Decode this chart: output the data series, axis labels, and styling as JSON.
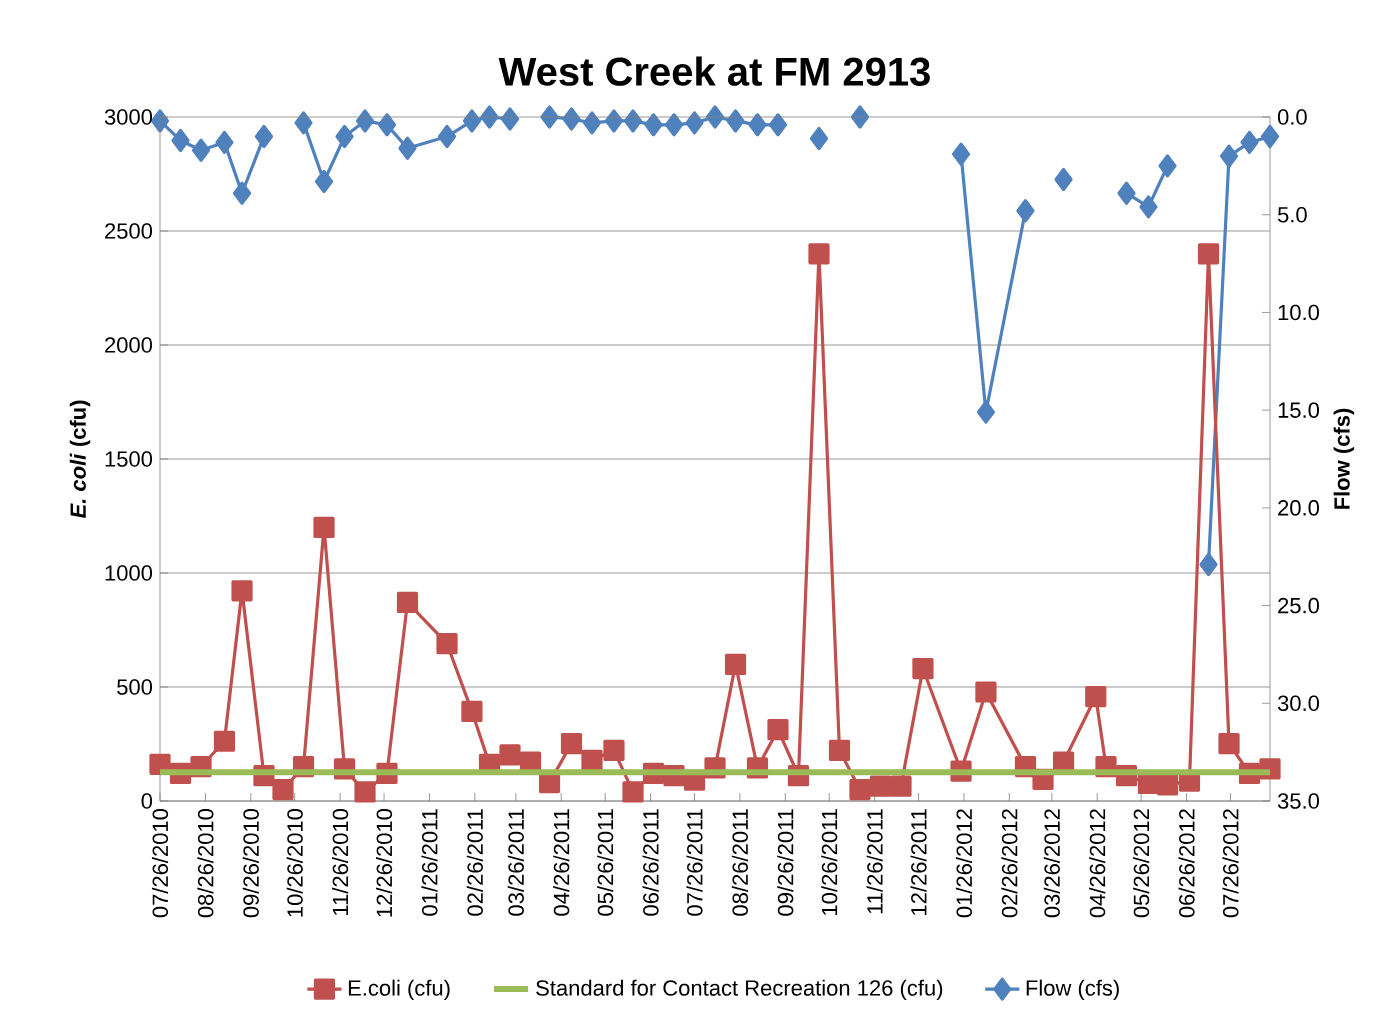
{
  "chart_data": {
    "type": "line",
    "title": "West Creek at FM 2913",
    "ylabel": "*E. coli* (cfu)",
    "y2label": "Flow (cfs)",
    "x": [
      "2010-07-26",
      "2010-08-09",
      "2010-08-23",
      "2010-09-08",
      "2010-09-20",
      "2010-10-05",
      "2010-10-18",
      "2010-11-01",
      "2010-11-15",
      "2010-11-29",
      "2010-12-13",
      "2010-12-28",
      "2011-01-11",
      "2011-02-07",
      "2011-02-24",
      "2011-03-08",
      "2011-03-22",
      "2011-04-05",
      "2011-04-18",
      "2011-05-03",
      "2011-05-17",
      "2011-06-01",
      "2011-06-14",
      "2011-06-28",
      "2011-07-12",
      "2011-07-26",
      "2011-08-09",
      "2011-08-23",
      "2011-09-07",
      "2011-09-21",
      "2011-10-05",
      "2011-10-19",
      "2011-11-02",
      "2011-11-16",
      "2011-11-30",
      "2011-12-14",
      "2011-12-29",
      "2012-01-24",
      "2012-02-10",
      "2012-03-08",
      "2012-03-20",
      "2012-04-03",
      "2012-04-25",
      "2012-05-02",
      "2012-05-16",
      "2012-05-31",
      "2012-06-13",
      "2012-06-28",
      "2012-07-11",
      "2012-07-25",
      "2012-08-08",
      "2012-08-22"
    ],
    "series": [
      {
        "name": "E.coli (cfu)",
        "color": "#c0504d",
        "marker": "square",
        "values": [
          161,
          121,
          151,
          262,
          922,
          111,
          50,
          151,
          1200,
          141,
          40,
          121,
          871,
          690,
          393,
          161,
          202,
          171,
          81,
          252,
          178,
          222,
          40,
          121,
          111,
          91,
          145,
          599,
          145,
          313,
          111,
          2400,
          222,
          50,
          65,
          65,
          581,
          131,
          478,
          151,
          95,
          171,
          458,
          151,
          111,
          77,
          71,
          87,
          2400,
          252,
          121,
          141
        ]
      },
      {
        "name": "Standard for Contact Recreation 126 (cfu)",
        "color": "#9bbb59",
        "marker": "none",
        "x": [
          "2010-07-26",
          "2012-08-22"
        ],
        "values": [
          126,
          126
        ]
      },
      {
        "name": "Flow (cfs)",
        "color": "#4f81bd",
        "marker": "diamond",
        "axis": "y2",
        "values": [
          0.2,
          1.2,
          1.7,
          1.3,
          3.9,
          1.0,
          null,
          0.3,
          3.3,
          1.0,
          0.2,
          0.4,
          1.6,
          1.0,
          0.2,
          0.0,
          0.1,
          null,
          0.0,
          0.1,
          0.3,
          0.2,
          0.2,
          0.4,
          0.4,
          0.3,
          0.0,
          0.2,
          0.4,
          0.4,
          null,
          1.1,
          null,
          0.0,
          null,
          null,
          null,
          1.9,
          15.1,
          4.8,
          null,
          3.2,
          null,
          null,
          3.9,
          4.6,
          2.5,
          null,
          22.9,
          2.0,
          1.3,
          1.0
        ]
      }
    ],
    "xlim": [
      "2010-07-26",
      "2012-08-22"
    ],
    "xticks": [
      {
        "value": "2010-07-26",
        "label": "07/26/2010"
      },
      {
        "value": "2010-08-26",
        "label": "08/26/2010"
      },
      {
        "value": "2010-09-26",
        "label": "09/26/2010"
      },
      {
        "value": "2010-10-26",
        "label": "10/26/2010"
      },
      {
        "value": "2010-11-26",
        "label": "11/26/2010"
      },
      {
        "value": "2010-12-26",
        "label": "12/26/2010"
      },
      {
        "value": "2011-01-26",
        "label": "01/26/2011"
      },
      {
        "value": "2011-02-26",
        "label": "02/26/2011"
      },
      {
        "value": "2011-03-26",
        "label": "03/26/2011"
      },
      {
        "value": "2011-04-26",
        "label": "04/26/2011"
      },
      {
        "value": "2011-05-26",
        "label": "05/26/2011"
      },
      {
        "value": "2011-06-26",
        "label": "06/26/2011"
      },
      {
        "value": "2011-07-26",
        "label": "07/26/2011"
      },
      {
        "value": "2011-08-26",
        "label": "08/26/2011"
      },
      {
        "value": "2011-09-26",
        "label": "09/26/2011"
      },
      {
        "value": "2011-10-26",
        "label": "10/26/2011"
      },
      {
        "value": "2011-11-26",
        "label": "11/26/2011"
      },
      {
        "value": "2011-12-26",
        "label": "12/26/2011"
      },
      {
        "value": "2012-01-26",
        "label": "01/26/2012"
      },
      {
        "value": "2012-02-26",
        "label": "02/26/2012"
      },
      {
        "value": "2012-03-26",
        "label": "03/26/2012"
      },
      {
        "value": "2012-04-26",
        "label": "04/26/2012"
      },
      {
        "value": "2012-05-26",
        "label": "05/26/2012"
      },
      {
        "value": "2012-06-26",
        "label": "06/26/2012"
      },
      {
        "value": "2012-07-26",
        "label": "07/26/2012"
      }
    ],
    "ylim": [
      0,
      3000
    ],
    "yticks": [
      0,
      500,
      1000,
      1500,
      2000,
      2500,
      3000
    ],
    "y2lim": [
      35,
      0
    ],
    "y2ticks": [
      {
        "value": 0,
        "label": "0.0"
      },
      {
        "value": 5,
        "label": "5.0"
      },
      {
        "value": 10,
        "label": "10.0"
      },
      {
        "value": 15,
        "label": "15.0"
      },
      {
        "value": 20,
        "label": "20.0"
      },
      {
        "value": 25,
        "label": "25.0"
      },
      {
        "value": 30,
        "label": "30.0"
      },
      {
        "value": 35,
        "label": "35.0"
      }
    ],
    "grid": "y",
    "legend": "bottom",
    "line_style": "solid"
  }
}
